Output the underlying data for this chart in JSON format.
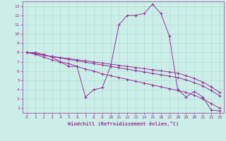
{
  "xlabel": "Windchill (Refroidissement éolien,°C)",
  "bg_color": "#cceee8",
  "line_color": "#993399",
  "grid_color": "#aaddcc",
  "x": [
    0,
    1,
    2,
    3,
    4,
    5,
    6,
    7,
    8,
    9,
    10,
    11,
    12,
    13,
    14,
    15,
    16,
    17,
    18,
    19,
    20,
    21,
    22,
    23
  ],
  "line1": [
    8.0,
    8.0,
    7.8,
    7.5,
    7.0,
    6.5,
    6.5,
    3.2,
    4.0,
    4.2,
    6.5,
    11.0,
    12.0,
    12.0,
    12.2,
    13.2,
    12.2,
    9.8,
    4.0,
    3.2,
    3.8,
    3.2,
    1.8,
    1.7
  ],
  "line2": [
    8.0,
    7.8,
    7.5,
    7.2,
    7.0,
    6.8,
    6.5,
    6.2,
    6.0,
    5.7,
    5.5,
    5.3,
    5.1,
    4.9,
    4.7,
    4.5,
    4.3,
    4.1,
    3.9,
    3.7,
    3.4,
    3.0,
    2.5,
    2.0
  ],
  "line3": [
    8.0,
    7.9,
    7.7,
    7.55,
    7.4,
    7.25,
    7.1,
    6.95,
    6.8,
    6.65,
    6.5,
    6.35,
    6.2,
    6.05,
    5.9,
    5.75,
    5.6,
    5.45,
    5.3,
    5.05,
    4.75,
    4.4,
    3.9,
    3.35
  ],
  "line4": [
    8.0,
    7.85,
    7.7,
    7.58,
    7.46,
    7.34,
    7.22,
    7.1,
    6.98,
    6.86,
    6.74,
    6.62,
    6.5,
    6.38,
    6.26,
    6.14,
    6.02,
    5.9,
    5.78,
    5.5,
    5.2,
    4.8,
    4.3,
    3.7
  ],
  "ylim": [
    1.5,
    13.5
  ],
  "xlim": [
    -0.5,
    23.5
  ],
  "yticks": [
    2,
    3,
    4,
    5,
    6,
    7,
    8,
    9,
    10,
    11,
    12,
    13
  ],
  "xticks": [
    0,
    1,
    2,
    3,
    4,
    5,
    6,
    7,
    8,
    9,
    10,
    11,
    12,
    13,
    14,
    15,
    16,
    17,
    18,
    19,
    20,
    21,
    22,
    23
  ]
}
